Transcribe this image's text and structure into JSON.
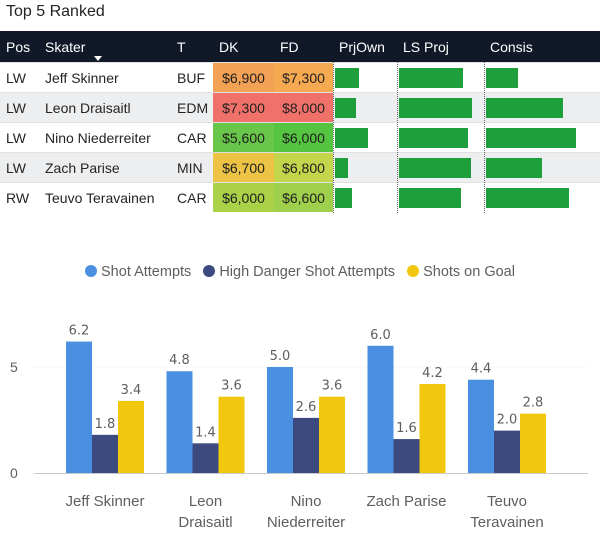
{
  "page_title": "Top 5 Ranked",
  "table": {
    "columns": [
      "Pos",
      "Skater",
      "T",
      "DK",
      "FD",
      "PrjOwn",
      "LS Proj",
      "Consis"
    ],
    "rows": [
      {
        "pos": "LW",
        "skater": "Jeff Skinner",
        "team": "BUF",
        "dk": "$6,900",
        "fd": "$7,300",
        "dk_color": "#f3a155",
        "fd_color": "#f5a950",
        "prjown": 0.45,
        "ls_proj": 0.82,
        "consis": 0.36
      },
      {
        "pos": "LW",
        "skater": "Leon Draisaitl",
        "team": "EDM",
        "dk": "$7,300",
        "fd": "$8,000",
        "dk_color": "#f0716a",
        "fd_color": "#f0716a",
        "prjown": 0.38,
        "ls_proj": 0.93,
        "consis": 0.86
      },
      {
        "pos": "LW",
        "skater": "Nino Niederreiter",
        "team": "CAR",
        "dk": "$5,600",
        "fd": "$6,000",
        "dk_color": "#68c64a",
        "fd_color": "#55c441",
        "prjown": 0.62,
        "ls_proj": 0.89,
        "consis": 1.0
      },
      {
        "pos": "LW",
        "skater": "Zach Parise",
        "team": "MIN",
        "dk": "$6,700",
        "fd": "$6,800",
        "dk_color": "#ecc345",
        "fd_color": "#c3d54a",
        "prjown": 0.24,
        "ls_proj": 0.92,
        "consis": 0.62
      },
      {
        "pos": "RW",
        "skater": "Teuvo Teravainen",
        "team": "CAR",
        "dk": "$6,000",
        "fd": "$6,600",
        "dk_color": "#aad148",
        "fd_color": "#9fd04b",
        "prjown": 0.32,
        "ls_proj": 0.79,
        "consis": 0.92
      }
    ]
  },
  "colors": {
    "header_bg": "#111827",
    "bar_green": "#1f9e3c",
    "series": [
      "#4a8fe0",
      "#3c4a80",
      "#f2c80f"
    ]
  },
  "chart_data": {
    "type": "bar",
    "categories": [
      [
        "Jeff Skinner"
      ],
      [
        "Leon",
        "Draisaitl"
      ],
      [
        "Nino",
        "Niederreiter"
      ],
      [
        "Zach Parise"
      ],
      [
        "Teuvo",
        "Teravainen"
      ]
    ],
    "series": [
      {
        "name": "Shot Attempts",
        "values": [
          6.2,
          4.8,
          5.0,
          6.0,
          4.4
        ]
      },
      {
        "name": "High Danger Shot Attempts",
        "values": [
          1.8,
          1.4,
          2.6,
          1.6,
          2.0
        ]
      },
      {
        "name": "Shots on Goal",
        "values": [
          3.4,
          3.6,
          3.6,
          4.2,
          2.8
        ]
      }
    ],
    "y_ticks": [
      "0",
      "5"
    ],
    "ylim": [
      0,
      7
    ],
    "legend_position": "top-center",
    "title": "",
    "xlabel": "",
    "ylabel": ""
  }
}
